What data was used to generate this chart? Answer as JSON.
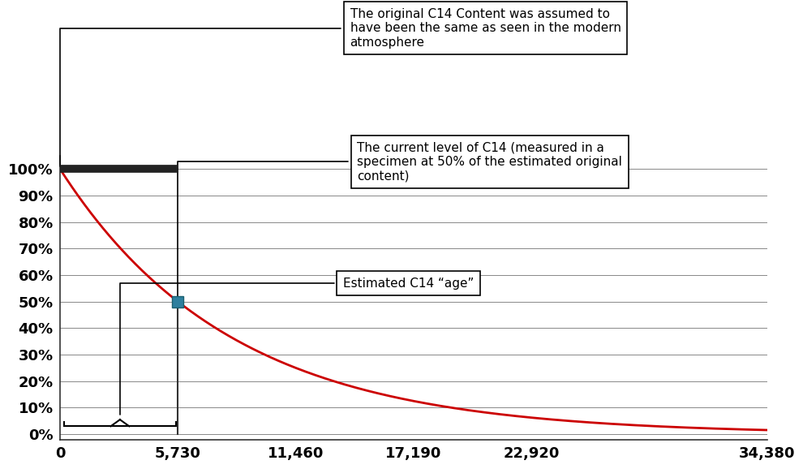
{
  "half_life": 5730,
  "x_ticks": [
    0,
    5730,
    11460,
    17190,
    22920,
    34380
  ],
  "x_tick_labels": [
    "0",
    "5,730",
    "11,460",
    "17,190",
    "22,920",
    "34,380"
  ],
  "y_ticks": [
    0,
    10,
    20,
    30,
    40,
    50,
    60,
    70,
    80,
    90,
    100
  ],
  "y_tick_labels": [
    "0%",
    "10%",
    "20%",
    "30%",
    "40%",
    "50%",
    "60%",
    "70%",
    "80%",
    "90%",
    "100%"
  ],
  "xlim": [
    0,
    34380
  ],
  "ylim": [
    -2,
    105
  ],
  "decay_color": "#cc0000",
  "decay_linewidth": 2.0,
  "marker_color": "#2e7f9e",
  "marker_x": 5730,
  "marker_y": 50,
  "bar_color": "#222222",
  "bar_xstart": 0,
  "bar_xend": 5730,
  "bar_y": 100,
  "bar_linewidth": 7,
  "vline_x": 5730,
  "vline_ystart": 0,
  "vline_yend": 50,
  "vline_color": "#333333",
  "vline_linewidth": 1.5,
  "annotation1_text": "The original C14 Content was assumed to\nhave been the same as seen in the modern\natmosphere",
  "annotation2_text": "The current level of C14 (measured in a\nspecimen at 50% of the estimated original\ncontent)",
  "annotation3_text": "Estimated C14 “age”",
  "background_color": "#ffffff",
  "grid_color": "#888888",
  "font_color": "#000000",
  "font_size_ticks": 13,
  "font_size_annotations": 11
}
